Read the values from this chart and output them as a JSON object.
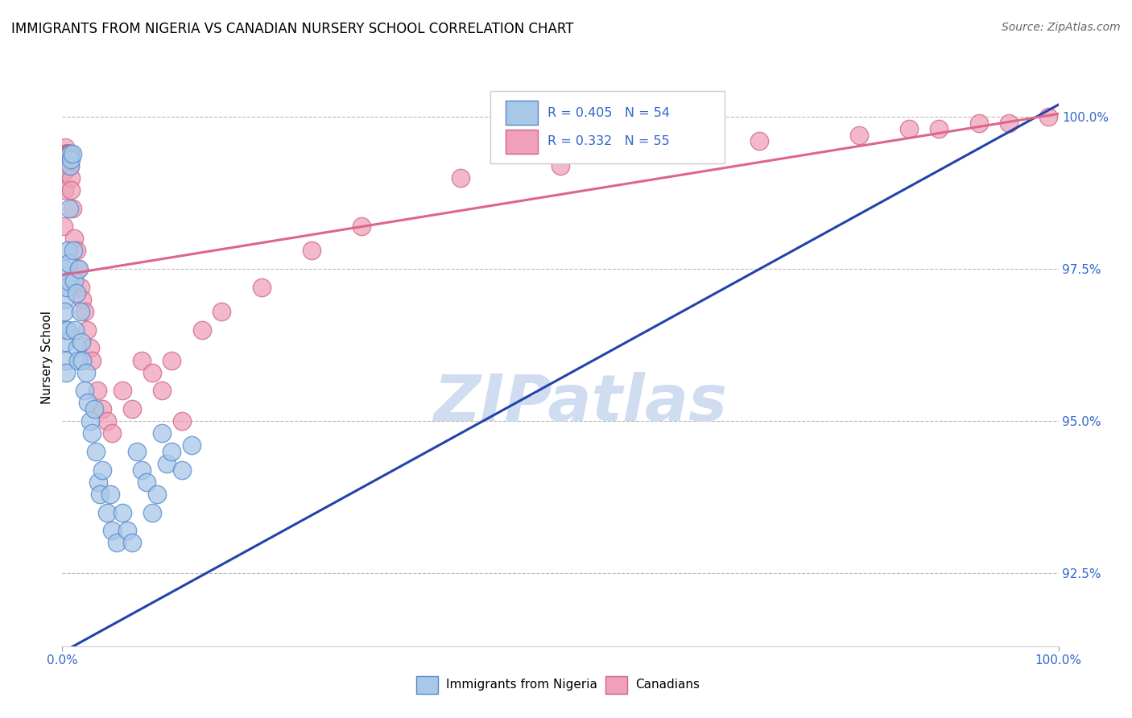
{
  "title": "IMMIGRANTS FROM NIGERIA VS CANADIAN NURSERY SCHOOL CORRELATION CHART",
  "source": "Source: ZipAtlas.com",
  "ylabel": "Nursery School",
  "y_ticks": [
    92.5,
    95.0,
    97.5,
    100.0
  ],
  "y_tick_labels": [
    "92.5%",
    "95.0%",
    "97.5%",
    "100.0%"
  ],
  "x_range": [
    0.0,
    100.0
  ],
  "y_range": [
    91.3,
    100.8
  ],
  "legend_blue_label": "Immigrants from Nigeria",
  "legend_pink_label": "Canadians",
  "r_blue": 0.405,
  "n_blue": 54,
  "r_pink": 0.332,
  "n_pink": 55,
  "blue_color": "#A8C8E8",
  "blue_edge": "#5588CC",
  "pink_color": "#F0A0B8",
  "pink_edge": "#CC6688",
  "trendline_blue": "#2244AA",
  "trendline_pink": "#DD6688",
  "watermark_text": "ZIPatlas",
  "watermark_color": "#D0DCF0",
  "blue_x": [
    0.18,
    0.22,
    0.25,
    0.28,
    0.32,
    0.35,
    0.4,
    0.45,
    0.5,
    0.55,
    0.6,
    0.65,
    0.7,
    0.75,
    0.8,
    0.9,
    1.0,
    1.1,
    1.2,
    1.3,
    1.4,
    1.5,
    1.6,
    1.7,
    1.8,
    1.9,
    2.0,
    2.2,
    2.4,
    2.6,
    2.8,
    3.0,
    3.2,
    3.4,
    3.6,
    3.8,
    4.0,
    4.5,
    4.8,
    5.0,
    5.5,
    6.0,
    6.5,
    7.0,
    7.5,
    8.0,
    8.5,
    9.0,
    9.5,
    10.0,
    10.5,
    11.0,
    12.0,
    13.0
  ],
  "blue_y": [
    97.5,
    97.0,
    96.8,
    96.5,
    96.3,
    96.0,
    95.8,
    97.2,
    96.5,
    97.8,
    97.3,
    97.6,
    98.5,
    99.2,
    99.4,
    99.3,
    99.4,
    97.8,
    97.3,
    96.5,
    97.1,
    96.2,
    96.0,
    97.5,
    96.8,
    96.3,
    96.0,
    95.5,
    95.8,
    95.3,
    95.0,
    94.8,
    95.2,
    94.5,
    94.0,
    93.8,
    94.2,
    93.5,
    93.8,
    93.2,
    93.0,
    93.5,
    93.2,
    93.0,
    94.5,
    94.2,
    94.0,
    93.5,
    93.8,
    94.8,
    94.3,
    94.5,
    94.2,
    94.6
  ],
  "pink_x": [
    0.15,
    0.2,
    0.22,
    0.25,
    0.28,
    0.3,
    0.35,
    0.38,
    0.4,
    0.45,
    0.5,
    0.55,
    0.6,
    0.65,
    0.7,
    0.75,
    0.8,
    0.85,
    0.9,
    1.0,
    1.2,
    1.4,
    1.6,
    1.8,
    2.0,
    2.2,
    2.5,
    2.8,
    3.0,
    3.5,
    4.0,
    4.5,
    5.0,
    6.0,
    7.0,
    8.0,
    9.0,
    10.0,
    11.0,
    12.0,
    14.0,
    16.0,
    20.0,
    25.0,
    30.0,
    40.0,
    50.0,
    60.0,
    70.0,
    80.0,
    85.0,
    88.0,
    92.0,
    95.0,
    99.0
  ],
  "pink_y": [
    98.2,
    98.8,
    99.1,
    99.3,
    99.5,
    99.4,
    99.4,
    99.4,
    99.4,
    99.4,
    99.4,
    99.4,
    99.4,
    99.4,
    99.4,
    99.4,
    99.2,
    99.0,
    98.8,
    98.5,
    98.0,
    97.8,
    97.5,
    97.2,
    97.0,
    96.8,
    96.5,
    96.2,
    96.0,
    95.5,
    95.2,
    95.0,
    94.8,
    95.5,
    95.2,
    96.0,
    95.8,
    95.5,
    96.0,
    95.0,
    96.5,
    96.8,
    97.2,
    97.8,
    98.2,
    99.0,
    99.2,
    99.5,
    99.6,
    99.7,
    99.8,
    99.8,
    99.9,
    99.9,
    100.0
  ]
}
